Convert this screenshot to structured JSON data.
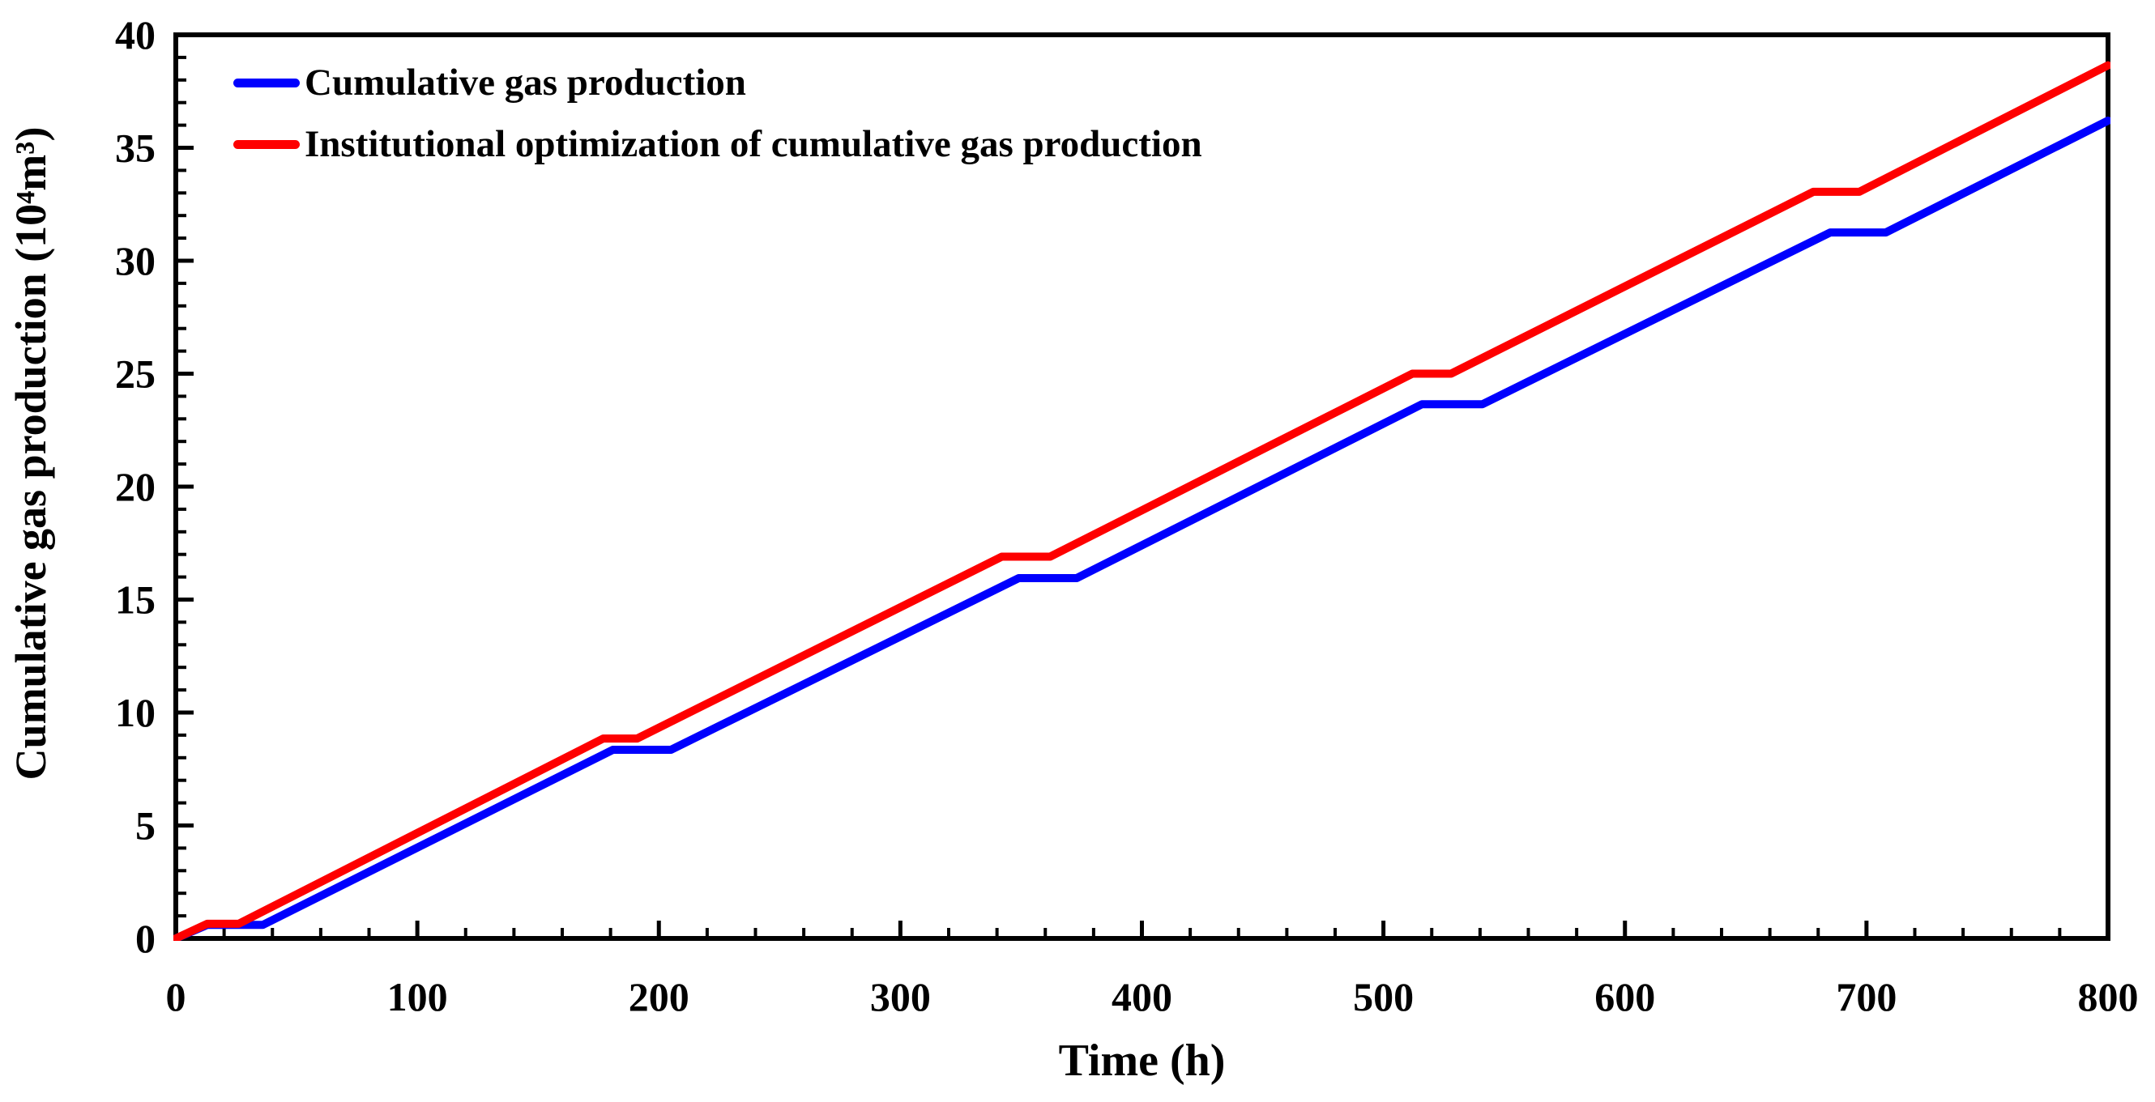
{
  "figure": {
    "background_color": "#ffffff",
    "axis_color": "#000000",
    "tick_label_color": "#000000"
  },
  "chart_data": {
    "type": "line",
    "title": "",
    "xlabel": "Time (h)",
    "ylabel": "Cumulative gas production (10⁴m³)",
    "xlim": [
      0,
      800
    ],
    "ylim": [
      0,
      40
    ],
    "grid": false,
    "legend_position": "top-left-inside",
    "x_major_ticks": [
      0,
      100,
      200,
      300,
      400,
      500,
      600,
      700,
      800
    ],
    "x_tick_labels": [
      "0",
      "100",
      "200",
      "300",
      "400",
      "500",
      "600",
      "700",
      "800"
    ],
    "x_minor_tick_interval": 20,
    "y_major_ticks": [
      0,
      5,
      10,
      15,
      20,
      25,
      30,
      35,
      40
    ],
    "y_tick_labels": [
      "0",
      "5",
      "10",
      "15",
      "20",
      "25",
      "30",
      "35",
      "40"
    ],
    "y_minor_tick_interval": 1,
    "series": [
      {
        "name": "Cumulative gas production",
        "color": "#0000fe",
        "line_width": 10,
        "points": [
          [
            0,
            0
          ],
          [
            13,
            0.6
          ],
          [
            36,
            0.6
          ],
          [
            181,
            8.35
          ],
          [
            205,
            8.35
          ],
          [
            349,
            15.95
          ],
          [
            373,
            15.95
          ],
          [
            516,
            23.65
          ],
          [
            541,
            23.65
          ],
          [
            685,
            31.25
          ],
          [
            708,
            31.25
          ],
          [
            800,
            36.2
          ]
        ]
      },
      {
        "name": "Institutional optimization of cumulative gas production",
        "color": "#fe0000",
        "line_width": 10,
        "points": [
          [
            0,
            0
          ],
          [
            13,
            0.65
          ],
          [
            26,
            0.65
          ],
          [
            177,
            8.85
          ],
          [
            191,
            8.85
          ],
          [
            342,
            16.9
          ],
          [
            362,
            16.9
          ],
          [
            512,
            25.0
          ],
          [
            528,
            25.0
          ],
          [
            678,
            33.05
          ],
          [
            697,
            33.05
          ],
          [
            800,
            38.65
          ]
        ]
      }
    ]
  }
}
